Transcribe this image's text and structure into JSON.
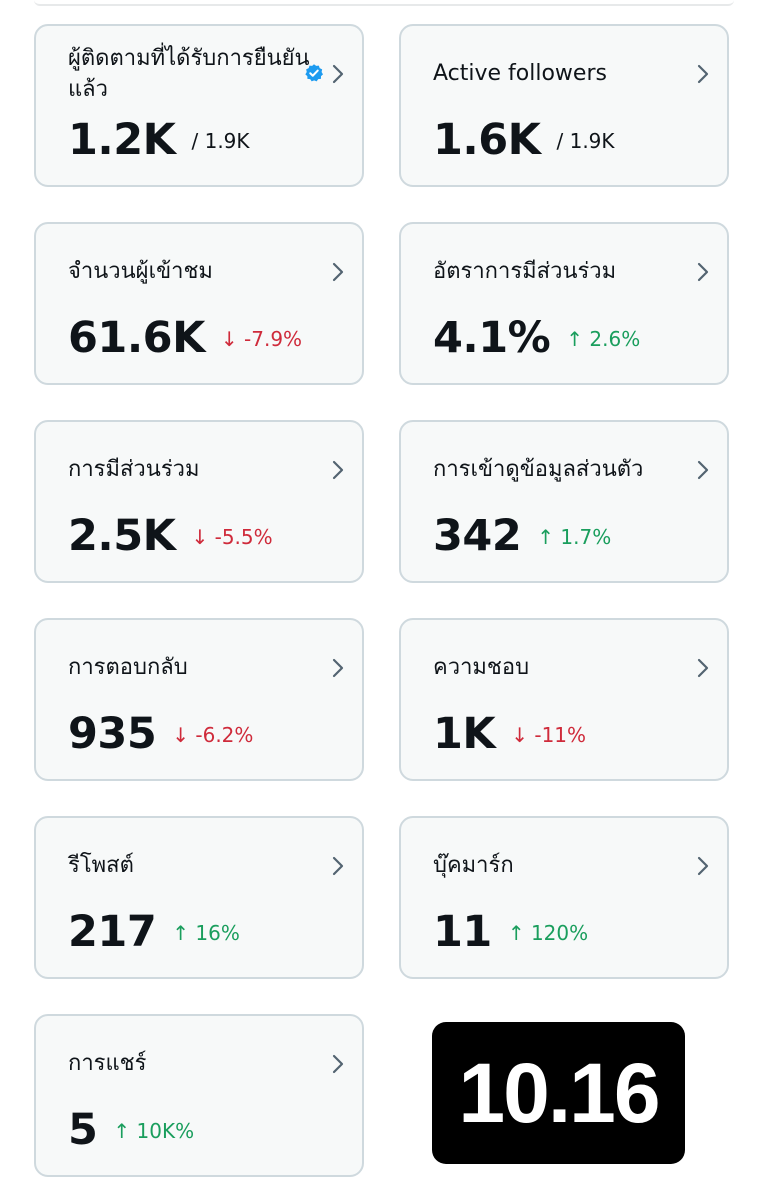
{
  "cards": [
    {
      "label": "ผู้ติดตามที่ได้รับการยืนยันแล้ว",
      "value": "1.2K",
      "sub": "/ 1.9K",
      "trend": "neutral",
      "verified_icon": "verified-badge-icon"
    },
    {
      "label": "Active followers",
      "value": "1.6K",
      "sub": "/ 1.9K",
      "trend": "neutral"
    },
    {
      "label": "จำนวนผู้เข้าชม",
      "value": "61.6K",
      "sub": "↓ -7.9%",
      "trend": "down"
    },
    {
      "label": "อัตราการมีส่วนร่วม",
      "value": "4.1%",
      "sub": "↑ 2.6%",
      "trend": "up"
    },
    {
      "label": "การมีส่วนร่วม",
      "value": "2.5K",
      "sub": "↓ -5.5%",
      "trend": "down"
    },
    {
      "label": "การเข้าดูข้อมูลส่วนตัว",
      "value": "342",
      "sub": "↑ 1.7%",
      "trend": "up"
    },
    {
      "label": "การตอบกลับ",
      "value": "935",
      "sub": "↓ -6.2%",
      "trend": "down"
    },
    {
      "label": "ความชอบ",
      "value": "1K",
      "sub": "↓ -11%",
      "trend": "down"
    },
    {
      "label": "รีโพสต์",
      "value": "217",
      "sub": "↑ 16%",
      "trend": "up"
    },
    {
      "label": "บุ๊คมาร์ก",
      "value": "11",
      "sub": "↑ 120%",
      "trend": "up"
    },
    {
      "label": "การแชร์",
      "value": "5",
      "sub": "↑ 10K%",
      "trend": "up"
    }
  ],
  "time_overlay": "10.16",
  "colors": {
    "down": "#cf2b3b",
    "up": "#1a9e5d",
    "verified": "#1d9bf0"
  }
}
